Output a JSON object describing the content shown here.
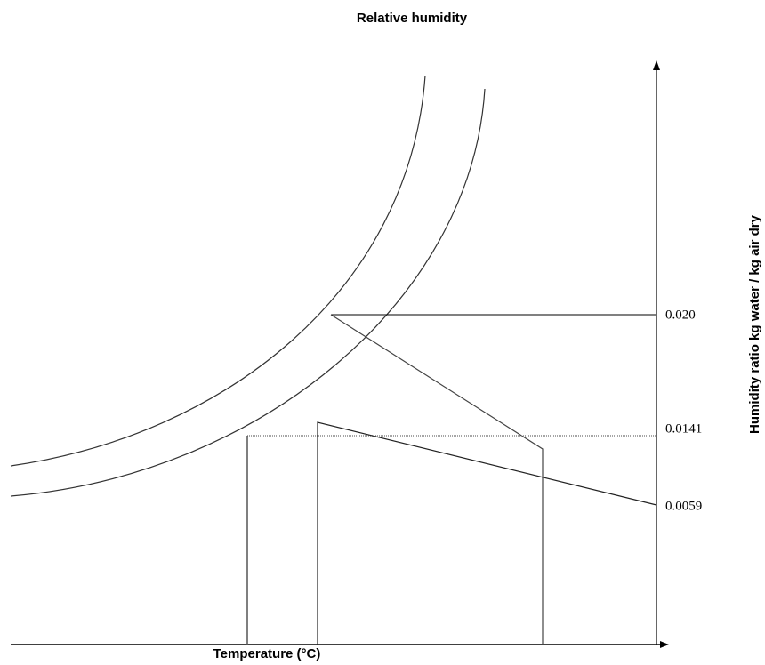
{
  "title": "Relative humidity",
  "x_axis": {
    "label": "Temperature (°C)"
  },
  "y_axis": {
    "label": "Humidity ratio kg water / kg air dry"
  },
  "levels": [
    "0.020",
    "0.0141",
    "0.0059"
  ]
}
